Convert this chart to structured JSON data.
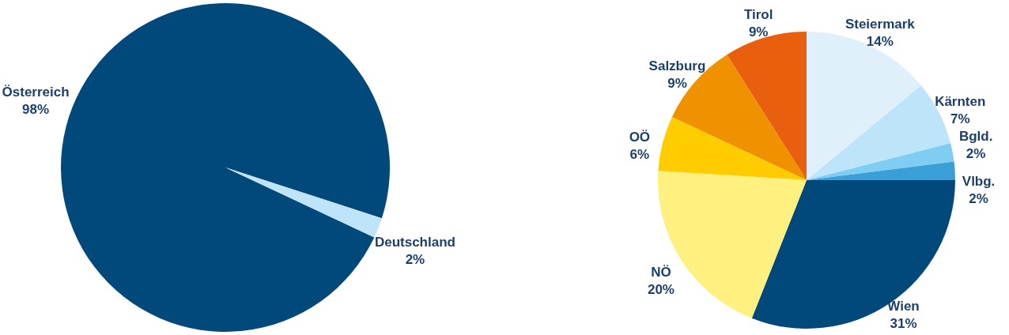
{
  "chart_data": [
    {
      "type": "pie",
      "categories": [
        "Österreich",
        "Deutschland"
      ],
      "values": [
        98,
        2
      ],
      "value_labels": [
        "98%",
        "2%"
      ],
      "colors": [
        "#00497a",
        "#bde4f8"
      ]
    },
    {
      "type": "pie",
      "categories": [
        "Steiermark",
        "Kärnten",
        "Bgld.",
        "Vlbg.",
        "Wien",
        "NÖ",
        "OÖ",
        "Salzburg",
        "Tirol"
      ],
      "values": [
        14,
        7,
        2,
        2,
        31,
        20,
        6,
        9,
        9
      ],
      "value_labels": [
        "14%",
        "7%",
        "2%",
        "2%",
        "31%",
        "20%",
        "6%",
        "9%",
        "9%"
      ],
      "colors": [
        "#dff0fb",
        "#bde4f8",
        "#7fcdf2",
        "#3a9fd6",
        "#00497a",
        "#fff080",
        "#ffcc00",
        "#f09200",
        "#e8600e"
      ]
    }
  ]
}
